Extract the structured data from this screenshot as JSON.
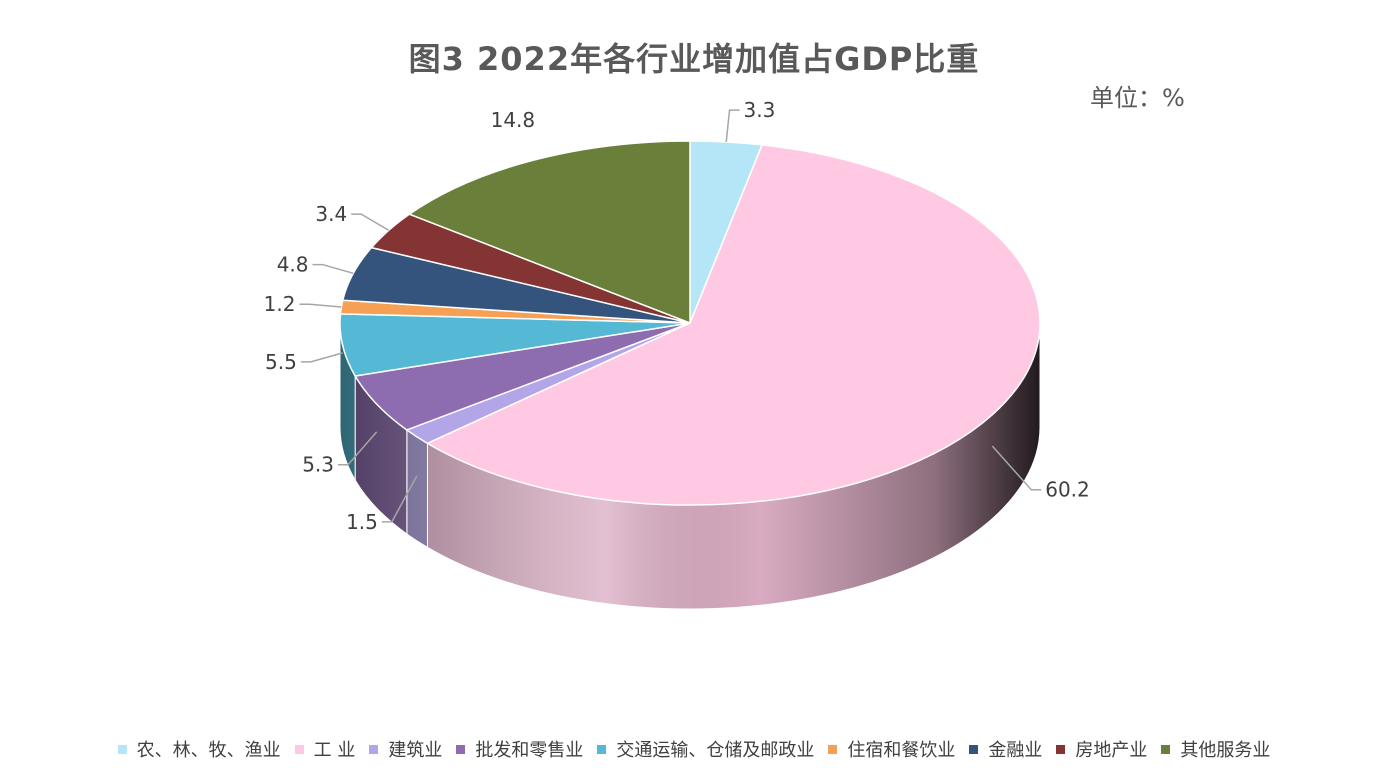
{
  "chart_data": {
    "type": "pie",
    "title": "图3   2022年各行业增加值占GDP比重",
    "unit": "单位：%",
    "categories": [
      "农、林、牧、渔业",
      "工  业",
      "建筑业",
      "批发和零售业",
      "交通运输、仓储及邮政业",
      "住宿和餐饮业",
      "金融业",
      "房地产业",
      "其他服务业"
    ],
    "values": [
      3.3,
      60.2,
      1.5,
      5.3,
      5.5,
      1.2,
      4.8,
      3.4,
      14.8
    ],
    "colors": [
      "#b4e6f7",
      "#ffc9e4",
      "#b3a6e8",
      "#8e6cb0",
      "#55b8d4",
      "#f5a054",
      "#34547e",
      "#843433",
      "#6a7f3a"
    ],
    "legend_position": "bottom",
    "style": "3d"
  }
}
